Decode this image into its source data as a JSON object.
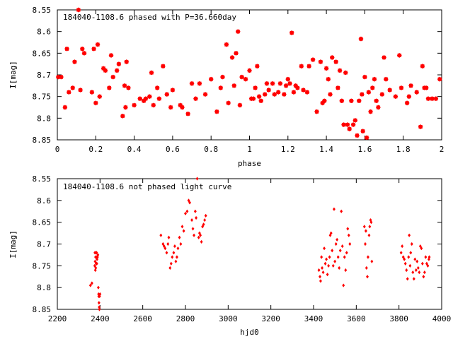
{
  "chart_data": [
    {
      "type": "scatter",
      "title": "184040-1108.6 phased with P=36.660day",
      "xlabel": "phase",
      "ylabel": "I[mag]",
      "xlim": [
        0,
        2
      ],
      "ylim": [
        8.55,
        8.85
      ],
      "y_inverted": true,
      "xticks": [
        "0",
        "0.2",
        "0.4",
        "0.6",
        "0.8",
        "1",
        "1.2",
        "1.4",
        "1.6",
        "1.8",
        "2"
      ],
      "yticks": [
        "8.55",
        "8.6",
        "8.65",
        "8.7",
        "8.75",
        "8.8",
        "8.85"
      ],
      "grid": false,
      "marker": "star",
      "color": "#ff0000",
      "points": [
        [
          0.005,
          8.705
        ],
        [
          0.02,
          8.705
        ],
        [
          0.04,
          8.775
        ],
        [
          0.05,
          8.64
        ],
        [
          0.06,
          8.74
        ],
        [
          0.08,
          8.73
        ],
        [
          0.09,
          8.67
        ],
        [
          0.11,
          8.55
        ],
        [
          0.12,
          8.735
        ],
        [
          0.13,
          8.64
        ],
        [
          0.14,
          8.65
        ],
        [
          0.18,
          8.74
        ],
        [
          0.19,
          8.64
        ],
        [
          0.2,
          8.765
        ],
        [
          0.21,
          8.63
        ],
        [
          0.22,
          8.75
        ],
        [
          0.24,
          8.685
        ],
        [
          0.25,
          8.69
        ],
        [
          0.27,
          8.73
        ],
        [
          0.28,
          8.655
        ],
        [
          0.29,
          8.705
        ],
        [
          0.31,
          8.69
        ],
        [
          0.32,
          8.675
        ],
        [
          0.34,
          8.795
        ],
        [
          0.35,
          8.725
        ],
        [
          0.355,
          8.775
        ],
        [
          0.36,
          8.67
        ],
        [
          0.37,
          8.73
        ],
        [
          0.4,
          8.77
        ],
        [
          0.43,
          8.755
        ],
        [
          0.45,
          8.76
        ],
        [
          0.46,
          8.755
        ],
        [
          0.48,
          8.75
        ],
        [
          0.49,
          8.695
        ],
        [
          0.5,
          8.77
        ],
        [
          0.52,
          8.73
        ],
        [
          0.53,
          8.755
        ],
        [
          0.55,
          8.68
        ],
        [
          0.57,
          8.745
        ],
        [
          0.59,
          8.775
        ],
        [
          0.6,
          8.735
        ],
        [
          0.64,
          8.77
        ],
        [
          0.65,
          8.775
        ],
        [
          0.68,
          8.79
        ],
        [
          0.7,
          8.72
        ],
        [
          0.72,
          8.755
        ],
        [
          0.74,
          8.72
        ],
        [
          0.77,
          8.745
        ],
        [
          0.8,
          8.71
        ],
        [
          0.83,
          8.785
        ],
        [
          0.85,
          8.73
        ],
        [
          0.86,
          8.705
        ],
        [
          0.88,
          8.63
        ],
        [
          0.89,
          8.765
        ],
        [
          0.91,
          8.66
        ],
        [
          0.92,
          8.725
        ],
        [
          0.93,
          8.65
        ],
        [
          0.94,
          8.6
        ],
        [
          0.95,
          8.77
        ],
        [
          0.96,
          8.705
        ],
        [
          0.98,
          8.71
        ],
        [
          1.0,
          8.69
        ],
        [
          1.01,
          8.755
        ],
        [
          1.02,
          8.755
        ],
        [
          1.03,
          8.73
        ],
        [
          1.04,
          8.68
        ],
        [
          1.05,
          8.75
        ],
        [
          1.06,
          8.76
        ],
        [
          1.08,
          8.745
        ],
        [
          1.09,
          8.72
        ],
        [
          1.1,
          8.735
        ],
        [
          1.12,
          8.72
        ],
        [
          1.13,
          8.745
        ],
        [
          1.15,
          8.74
        ],
        [
          1.16,
          8.72
        ],
        [
          1.18,
          8.745
        ],
        [
          1.19,
          8.725
        ],
        [
          1.2,
          8.71
        ],
        [
          1.21,
          8.72
        ],
        [
          1.22,
          8.603
        ],
        [
          1.23,
          8.74
        ],
        [
          1.24,
          8.725
        ],
        [
          1.25,
          8.73
        ],
        [
          1.27,
          8.68
        ],
        [
          1.28,
          8.735
        ],
        [
          1.3,
          8.74
        ],
        [
          1.31,
          8.68
        ],
        [
          1.33,
          8.665
        ],
        [
          1.35,
          8.785
        ],
        [
          1.37,
          8.67
        ],
        [
          1.38,
          8.765
        ],
        [
          1.39,
          8.76
        ],
        [
          1.4,
          8.685
        ],
        [
          1.41,
          8.71
        ],
        [
          1.42,
          8.745
        ],
        [
          1.43,
          8.66
        ],
        [
          1.45,
          8.67
        ],
        [
          1.46,
          8.73
        ],
        [
          1.47,
          8.69
        ],
        [
          1.48,
          8.76
        ],
        [
          1.49,
          8.815
        ],
        [
          1.5,
          8.695
        ],
        [
          1.51,
          8.815
        ],
        [
          1.52,
          8.825
        ],
        [
          1.53,
          8.76
        ],
        [
          1.54,
          8.815
        ],
        [
          1.55,
          8.805
        ],
        [
          1.56,
          8.84
        ],
        [
          1.57,
          8.76
        ],
        [
          1.58,
          8.617
        ],
        [
          1.585,
          8.745
        ],
        [
          1.59,
          8.83
        ],
        [
          1.6,
          8.705
        ],
        [
          1.61,
          8.845
        ],
        [
          1.62,
          8.74
        ],
        [
          1.63,
          8.785
        ],
        [
          1.64,
          8.73
        ],
        [
          1.65,
          8.71
        ],
        [
          1.66,
          8.76
        ],
        [
          1.67,
          8.775
        ],
        [
          1.69,
          8.745
        ],
        [
          1.7,
          8.66
        ],
        [
          1.71,
          8.71
        ],
        [
          1.73,
          8.735
        ],
        [
          1.76,
          8.75
        ],
        [
          1.78,
          8.655
        ],
        [
          1.79,
          8.73
        ],
        [
          1.82,
          8.765
        ],
        [
          1.83,
          8.75
        ],
        [
          1.84,
          8.725
        ],
        [
          1.87,
          8.74
        ],
        [
          1.89,
          8.82
        ],
        [
          1.9,
          8.68
        ],
        [
          1.91,
          8.73
        ],
        [
          1.92,
          8.73
        ],
        [
          1.93,
          8.755
        ],
        [
          1.95,
          8.755
        ],
        [
          1.97,
          8.755
        ],
        [
          1.99,
          8.71
        ]
      ]
    },
    {
      "type": "scatter",
      "title": "184040-1108.6 not phased light curve",
      "xlabel": "hjd0",
      "ylabel": "I[mag]",
      "xlim": [
        2200,
        4000
      ],
      "ylim": [
        8.55,
        8.85
      ],
      "y_inverted": true,
      "xticks": [
        "2200",
        "2400",
        "2600",
        "2800",
        "3000",
        "3200",
        "3400",
        "3600",
        "3800",
        "4000"
      ],
      "yticks": [
        "8.55",
        "8.6",
        "8.65",
        "8.7",
        "8.75",
        "8.8",
        "8.85"
      ],
      "grid": false,
      "marker": "diamond",
      "color": "#ff0000",
      "points": [
        [
          2355,
          8.795
        ],
        [
          2362,
          8.79
        ],
        [
          2375,
          8.75
        ],
        [
          2376,
          8.72
        ],
        [
          2377,
          8.74
        ],
        [
          2378,
          8.76
        ],
        [
          2379,
          8.73
        ],
        [
          2380,
          8.755
        ],
        [
          2381,
          8.72
        ],
        [
          2382,
          8.745
        ],
        [
          2383,
          8.73
        ],
        [
          2384,
          8.72
        ],
        [
          2385,
          8.745
        ],
        [
          2386,
          8.735
        ],
        [
          2388,
          8.73
        ],
        [
          2390,
          8.725
        ],
        [
          2392,
          8.8
        ],
        [
          2393,
          8.815
        ],
        [
          2394,
          8.82
        ],
        [
          2395,
          8.835
        ],
        [
          2396,
          8.845
        ],
        [
          2397,
          8.85
        ],
        [
          2398,
          8.82
        ],
        [
          2400,
          8.815
        ],
        [
          2685,
          8.68
        ],
        [
          2695,
          8.7
        ],
        [
          2700,
          8.705
        ],
        [
          2705,
          8.71
        ],
        [
          2712,
          8.72
        ],
        [
          2718,
          8.7
        ],
        [
          2722,
          8.685
        ],
        [
          2728,
          8.755
        ],
        [
          2733,
          8.745
        ],
        [
          2738,
          8.73
        ],
        [
          2745,
          8.72
        ],
        [
          2750,
          8.705
        ],
        [
          2755,
          8.74
        ],
        [
          2760,
          8.73
        ],
        [
          2765,
          8.71
        ],
        [
          2772,
          8.685
        ],
        [
          2778,
          8.7
        ],
        [
          2785,
          8.66
        ],
        [
          2792,
          8.67
        ],
        [
          2800,
          8.63
        ],
        [
          2808,
          8.625
        ],
        [
          2815,
          8.6
        ],
        [
          2820,
          8.605
        ],
        [
          2830,
          8.645
        ],
        [
          2835,
          8.665
        ],
        [
          2840,
          8.68
        ],
        [
          2846,
          8.625
        ],
        [
          2850,
          8.64
        ],
        [
          2855,
          8.55
        ],
        [
          2862,
          8.685
        ],
        [
          2866,
          8.675
        ],
        [
          2870,
          8.68
        ],
        [
          2875,
          8.695
        ],
        [
          2880,
          8.66
        ],
        [
          2885,
          8.655
        ],
        [
          2890,
          8.645
        ],
        [
          2895,
          8.635
        ],
        [
          3425,
          8.76
        ],
        [
          3430,
          8.775
        ],
        [
          3433,
          8.785
        ],
        [
          3437,
          8.73
        ],
        [
          3440,
          8.755
        ],
        [
          3445,
          8.765
        ],
        [
          3450,
          8.71
        ],
        [
          3455,
          8.745
        ],
        [
          3460,
          8.735
        ],
        [
          3465,
          8.77
        ],
        [
          3470,
          8.75
        ],
        [
          3475,
          8.73
        ],
        [
          3478,
          8.68
        ],
        [
          3482,
          8.675
        ],
        [
          3487,
          8.715
        ],
        [
          3492,
          8.75
        ],
        [
          3496,
          8.62
        ],
        [
          3500,
          8.74
        ],
        [
          3505,
          8.7
        ],
        [
          3510,
          8.69
        ],
        [
          3515,
          8.73
        ],
        [
          3520,
          8.755
        ],
        [
          3525,
          8.715
        ],
        [
          3530,
          8.625
        ],
        [
          3535,
          8.705
        ],
        [
          3540,
          8.795
        ],
        [
          3545,
          8.73
        ],
        [
          3550,
          8.76
        ],
        [
          3555,
          8.72
        ],
        [
          3560,
          8.665
        ],
        [
          3565,
          8.68
        ],
        [
          3570,
          8.7
        ],
        [
          3638,
          8.66
        ],
        [
          3642,
          8.7
        ],
        [
          3645,
          8.67
        ],
        [
          3648,
          8.755
        ],
        [
          3652,
          8.775
        ],
        [
          3655,
          8.73
        ],
        [
          3660,
          8.68
        ],
        [
          3663,
          8.66
        ],
        [
          3667,
          8.645
        ],
        [
          3670,
          8.65
        ],
        [
          3673,
          8.74
        ],
        [
          3810,
          8.72
        ],
        [
          3815,
          8.705
        ],
        [
          3820,
          8.73
        ],
        [
          3825,
          8.735
        ],
        [
          3830,
          8.745
        ],
        [
          3835,
          8.76
        ],
        [
          3840,
          8.78
        ],
        [
          3845,
          8.73
        ],
        [
          3848,
          8.68
        ],
        [
          3852,
          8.75
        ],
        [
          3855,
          8.72
        ],
        [
          3860,
          8.7
        ],
        [
          3865,
          8.765
        ],
        [
          3870,
          8.78
        ],
        [
          3875,
          8.735
        ],
        [
          3880,
          8.76
        ],
        [
          3885,
          8.74
        ],
        [
          3890,
          8.755
        ],
        [
          3895,
          8.765
        ],
        [
          3900,
          8.705
        ],
        [
          3905,
          8.71
        ],
        [
          3910,
          8.745
        ],
        [
          3915,
          8.775
        ],
        [
          3920,
          8.765
        ],
        [
          3925,
          8.73
        ],
        [
          3930,
          8.745
        ],
        [
          3935,
          8.75
        ],
        [
          3940,
          8.735
        ],
        [
          3942,
          8.73
        ]
      ]
    }
  ]
}
